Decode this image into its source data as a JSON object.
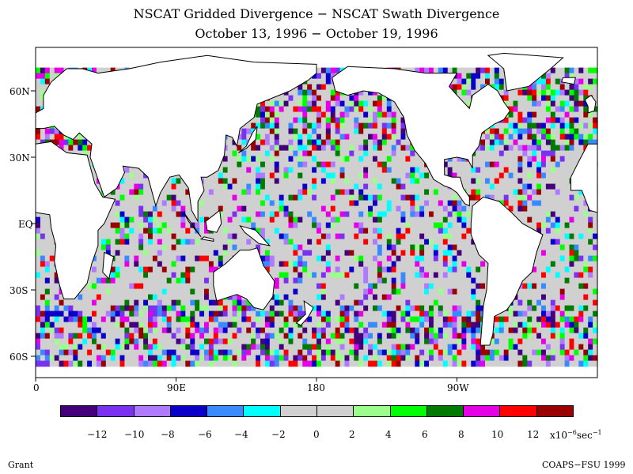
{
  "title_line1": "NSCAT Gridded Divergence − NSCAT Swath Divergence",
  "title_line2": "October 13, 1996 − October 19, 1996",
  "lat_labels": [
    "60N",
    "30N",
    "EQ",
    "30S",
    "60S"
  ],
  "lon_labels": [
    "0",
    "90E",
    "180",
    "90W"
  ],
  "colorbar": {
    "colors": [
      "#43007a",
      "#7a32f0",
      "#b07aff",
      "#0a00c8",
      "#3a8aff",
      "#00ffff",
      "#d0d0d0",
      "#d0d0d0",
      "#9cff8c",
      "#00ff00",
      "#007a00",
      "#e600e6",
      "#ff0000",
      "#9a0000"
    ],
    "tick_labels": [
      "−12",
      "−10",
      "−8",
      "−6",
      "−4",
      "−2",
      "0",
      "2",
      "4",
      "6",
      "8",
      "10",
      "12"
    ],
    "units_base": "x10",
    "units_exp1": "−6",
    "units_mid": "sec",
    "units_exp2": "−1"
  },
  "footer_left": "Grant",
  "footer_right": "COAPS−FSU 1999",
  "map_background_color": "#d0d0d0"
}
